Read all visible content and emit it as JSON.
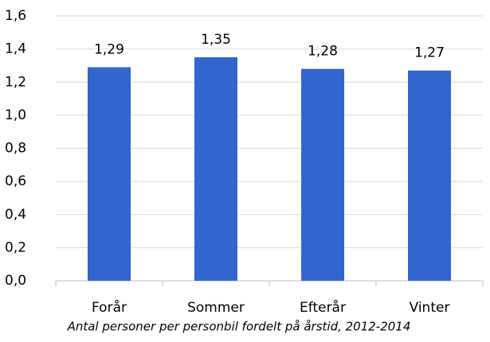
{
  "chart_data": {
    "type": "bar",
    "title": "Antal personer per personbil fordelt på årstid, 2012-2014",
    "categories": [
      "Forår",
      "Sommer",
      "Efterår",
      "Vinter"
    ],
    "values": [
      1.29,
      1.35,
      1.28,
      1.27
    ],
    "value_labels": [
      "1,29",
      "1,35",
      "1,28",
      "1,27"
    ],
    "color": "#3366cc",
    "ylim": [
      0,
      1.6
    ],
    "yticks": [
      {
        "value": 0,
        "label": "0,0"
      },
      {
        "value": 0.2,
        "label": "0,2"
      },
      {
        "value": 0.4,
        "label": "0,4"
      },
      {
        "value": 0.6,
        "label": "0,6"
      },
      {
        "value": 0.8,
        "label": "0,8"
      },
      {
        "value": 1.0,
        "label": "1,0"
      },
      {
        "value": 1.2,
        "label": "1,2"
      },
      {
        "value": 1.4,
        "label": "1,4"
      },
      {
        "value": 1.6,
        "label": "1,6"
      }
    ],
    "grid": true
  }
}
